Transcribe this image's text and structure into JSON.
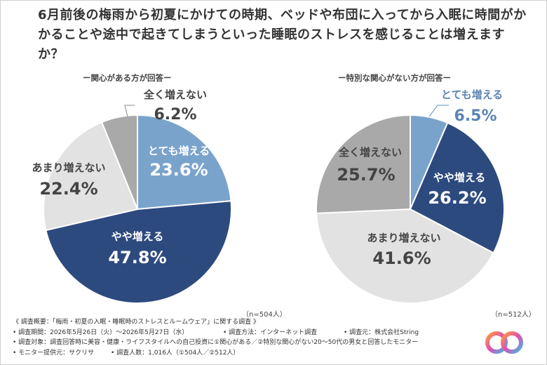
{
  "title": "6月前後の梅雨から初夏にかけての時期、ベッドや布団に入ってから入眠に時間がかかることや途中で起きてしまうといった睡眠のストレスを感じることは増えますか？",
  "chart_data": [
    {
      "type": "pie",
      "title": "ー関心がある方が回答ー",
      "n_label": "（n=504人）",
      "slices": [
        {
          "label": "とても増える",
          "value": 23.6,
          "value_text": "23.6%",
          "color": "#7aa3cc"
        },
        {
          "label": "やや増える",
          "value": 47.8,
          "value_text": "47.8%",
          "color": "#2d4a7f"
        },
        {
          "label": "あまり増えない",
          "value": 22.4,
          "value_text": "22.4%",
          "color": "#e2e2e2"
        },
        {
          "label": "全く増えない",
          "value": 6.2,
          "value_text": "6.2%",
          "color": "#a9a9a9"
        }
      ]
    },
    {
      "type": "pie",
      "title": "ー特別な関心がない方が回答ー",
      "n_label": "（n=512人）",
      "slices": [
        {
          "label": "とても増える",
          "value": 6.5,
          "value_text": "6.5%",
          "color": "#7aa3cc"
        },
        {
          "label": "やや増える",
          "value": 26.2,
          "value_text": "26.2%",
          "color": "#2d4a7f"
        },
        {
          "label": "あまり増えない",
          "value": 41.6,
          "value_text": "41.6%",
          "color": "#e2e2e2"
        },
        {
          "label": "全く増えない",
          "value": 25.7,
          "value_text": "25.7%",
          "color": "#a9a9a9"
        }
      ]
    }
  ],
  "footer": {
    "survey_name": "《 調査概要：「梅雨・初夏の入眠・睡眠時のストレスとルームウェア」に関する調査 》",
    "period": "• 調査期間：2026年5月26日（火）～2026年5月27日（水）",
    "method": "• 調査方法：インターネット調査",
    "org": "• 調査元：株式会社String",
    "target": "• 調査対象：調査回答時に美容・健康・ライフスタイルへの自己投資に①関心がある／②特別な関心がない20～50代の男女と回答したモニター",
    "provider": "• モニター提供元：サクリサ",
    "count": "• 調査人数：1,016人（①504人／②512人）"
  }
}
